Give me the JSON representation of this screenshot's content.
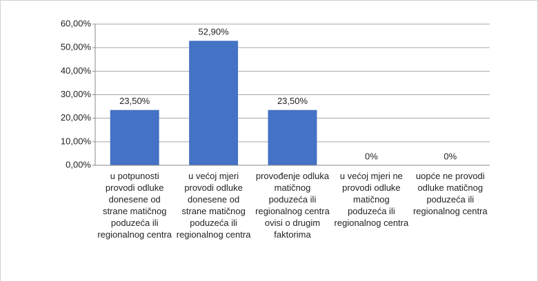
{
  "chart_data": {
    "type": "bar",
    "categories": [
      "u potpunosti provodi odluke donesene od strane matičnog poduzeća ili regionalnog centra",
      "u većoj mjeri provodi odluke donesene od strane matičnog poduzeća ili regionalnog centra",
      "provođenje odluka matičnog poduzeća ili regionalnog centra ovisi o drugim faktorima",
      "u većoj mjeri ne provodi odluke matičnog poduzeća ili regionalnog centra",
      "uopće ne provodi odluke matičnog poduzeća ili regionalnog centra"
    ],
    "values": [
      23.5,
      52.9,
      23.5,
      0,
      0
    ],
    "value_labels": [
      "23,50%",
      "52,90%",
      "23,50%",
      "0%",
      "0%"
    ],
    "color": "#4472c4",
    "ylim": [
      0,
      60
    ],
    "yticks": [
      {
        "value": 0,
        "label": "0,00%"
      },
      {
        "value": 10,
        "label": "10,00%"
      },
      {
        "value": 20,
        "label": "20,00%"
      },
      {
        "value": 30,
        "label": "30,00%"
      },
      {
        "value": 40,
        "label": "40,00%"
      },
      {
        "value": 50,
        "label": "50,00%"
      },
      {
        "value": 60,
        "label": "60,00%"
      }
    ],
    "grid": true
  }
}
